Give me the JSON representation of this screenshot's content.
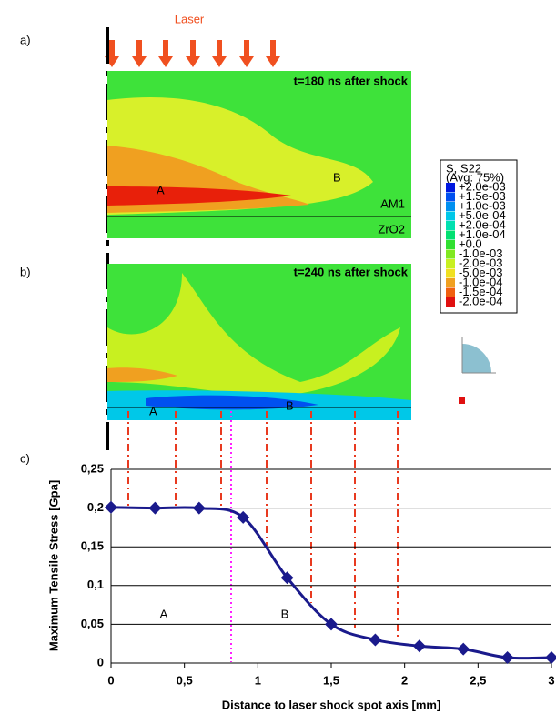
{
  "panels": {
    "a": {
      "label": "a)",
      "time": "t=180 ns after shock",
      "A": "A",
      "B": "B",
      "layer1": "AM1",
      "layer2": "ZrO2"
    },
    "b": {
      "label": "b)",
      "time": "t=240 ns after shock",
      "A": "A",
      "B": "B"
    },
    "c": {
      "label": "c)"
    },
    "laser": "Laser"
  },
  "legend": {
    "title": "S, S22",
    "subtitle": "(Avg: 75%)",
    "entries": [
      "+2.0e-03",
      "+1.5e-03",
      "+1.0e-03",
      "+5.0e-04",
      "+2.0e-04",
      "+1.0e-04",
      "+0.0",
      "-1.0e-03",
      "-2.0e-03",
      "-5.0e-03",
      "-1.0e-04",
      "-1.5e-04",
      "-2.0e-04"
    ],
    "colors": [
      "#0018e0",
      "#0050f0",
      "#0090f0",
      "#00c8e8",
      "#00e0b0",
      "#00e070",
      "#30e030",
      "#80e820",
      "#c8f020",
      "#f0e020",
      "#f0a020",
      "#f06010",
      "#e01010"
    ]
  },
  "chart_data": {
    "type": "line",
    "x_label": "Distance to laser shock spot axis [mm]",
    "y_label": "Maximum Tensile Stress [Gpa]",
    "series": [
      {
        "name": "Maximum Tensile Stress",
        "color": "#1a1a8c",
        "x": [
          0,
          0.3,
          0.6,
          0.9,
          1.2,
          1.5,
          1.8,
          2.1,
          2.4,
          2.7,
          3.0
        ],
        "values": [
          0.201,
          0.2,
          0.2,
          0.188,
          0.11,
          0.05,
          0.03,
          0.022,
          0.018,
          0.007,
          0.007
        ]
      }
    ],
    "xlim": [
      0,
      3
    ],
    "xticks": [
      0,
      {
        "value": 0.5,
        "label": "0,5"
      },
      1,
      {
        "value": 1.5,
        "label": "1,5"
      },
      2,
      {
        "value": 2.5,
        "label": "2,5"
      },
      3
    ],
    "ylim": [
      0,
      0.25
    ],
    "yticks": [
      0,
      {
        "value": 0.05,
        "label": "0,05"
      },
      {
        "value": 0.1,
        "label": "0,1"
      },
      {
        "value": 0.15,
        "label": "0,15"
      },
      {
        "value": 0.2,
        "label": "0,2"
      },
      {
        "value": 0.25,
        "label": "0,25"
      }
    ],
    "grid": true,
    "annotations": [
      "A",
      "B"
    ]
  }
}
